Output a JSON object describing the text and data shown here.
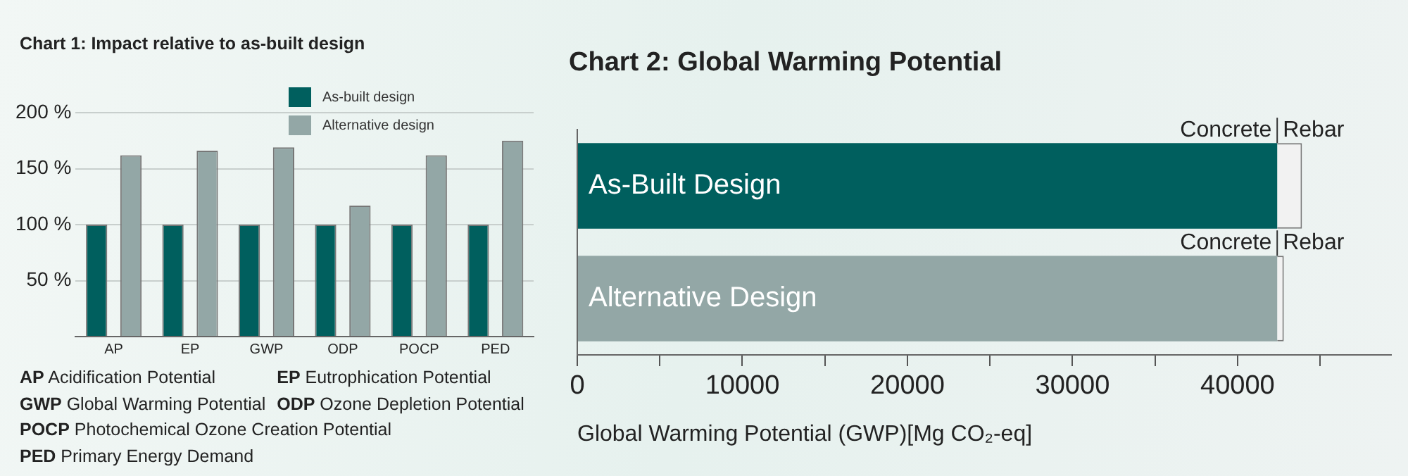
{
  "chart_data": [
    {
      "type": "bar",
      "title": "Chart 1: Impact relative to as-built design",
      "categories": [
        "AP",
        "EP",
        "GWP",
        "ODP",
        "POCP",
        "PED"
      ],
      "series": [
        {
          "name": "As-built design",
          "color": "#005f5e",
          "values": [
            100,
            100,
            100,
            100,
            100,
            100
          ]
        },
        {
          "name": "Alternative design",
          "color": "#93a7a6",
          "values": [
            162,
            166,
            169,
            117,
            162,
            175
          ]
        }
      ],
      "ylim": [
        0,
        200
      ],
      "yticks": [
        {
          "value": 0,
          "label": null
        },
        {
          "value": 50,
          "label": "50 %"
        },
        {
          "value": 100,
          "label": "100 %"
        },
        {
          "value": 150,
          "label": "150 %"
        },
        {
          "value": 200,
          "label": "200 %"
        }
      ],
      "grid": "y",
      "legend": "top right",
      "annotations": [
        "AP Acidification Potential",
        "EP Eutrophication Potential",
        "GWP Global Warming Potential",
        "ODP Ozone Depletion Potential",
        "POCP Photochemical Ozone Creation Potential",
        "PED Primary Energy Demand"
      ]
    },
    {
      "type": "bar",
      "orientation": "horizontal",
      "stacked": true,
      "title": "Chart 2: Global Warming Potential",
      "categories": [
        "As-Built Design",
        "Alternative Design"
      ],
      "series": [
        {
          "name": "Concrete",
          "colors": [
            "#005f5e",
            "#93a7a6"
          ],
          "values": [
            42400,
            42400
          ]
        },
        {
          "name": "Rebar",
          "color": "#f2f2f2",
          "values": [
            1500,
            400
          ]
        }
      ],
      "xlim": [
        0,
        49300
      ],
      "xticks": [
        0,
        {
          "value": 5000,
          "label": null
        },
        10000,
        {
          "value": 15000,
          "label": null
        },
        20000,
        {
          "value": 25000,
          "label": null
        },
        30000,
        {
          "value": 35000,
          "label": null
        },
        40000,
        {
          "value": 45000,
          "label": null
        }
      ],
      "xlabel": "Global Warming Potential (GWP)[Mg CO₂-eq]",
      "tick_labels": "x",
      "legend": false
    }
  ]
}
